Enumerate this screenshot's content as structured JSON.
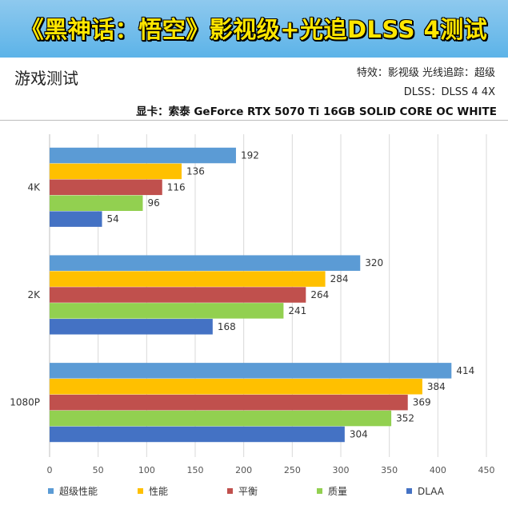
{
  "header": {
    "title": "《黑神话：悟空》影视级+光追DLSS 4测试",
    "subtitle": "游戏测试",
    "effects": "特效：影视级 光线追踪：超级",
    "dlss": "DLSS：DLSS 4 4X",
    "gpu": "显卡：索泰 GeForce RTX 5070 Ti 16GB SOLID CORE OC WHITE"
  },
  "chart_data": {
    "type": "bar",
    "orientation": "horizontal",
    "categories": [
      "4K",
      "2K",
      "1080P"
    ],
    "series": [
      {
        "name": "超级性能",
        "color": "#5b9bd5",
        "values": [
          192,
          320,
          414
        ]
      },
      {
        "name": "性能",
        "color": "#ffc000",
        "values": [
          136,
          284,
          384
        ]
      },
      {
        "name": "平衡",
        "color": "#c0504d",
        "values": [
          116,
          264,
          369
        ]
      },
      {
        "name": "质量",
        "color": "#92d050",
        "values": [
          96,
          241,
          352
        ]
      },
      {
        "name": "DLAA",
        "color": "#4472c4",
        "values": [
          54,
          168,
          304
        ]
      }
    ],
    "xlim": [
      0,
      450
    ],
    "xticks": [
      0,
      50,
      100,
      150,
      200,
      250,
      300,
      350,
      400,
      450
    ],
    "grid": "vertical",
    "legend": "bottom",
    "data_labels": true
  }
}
